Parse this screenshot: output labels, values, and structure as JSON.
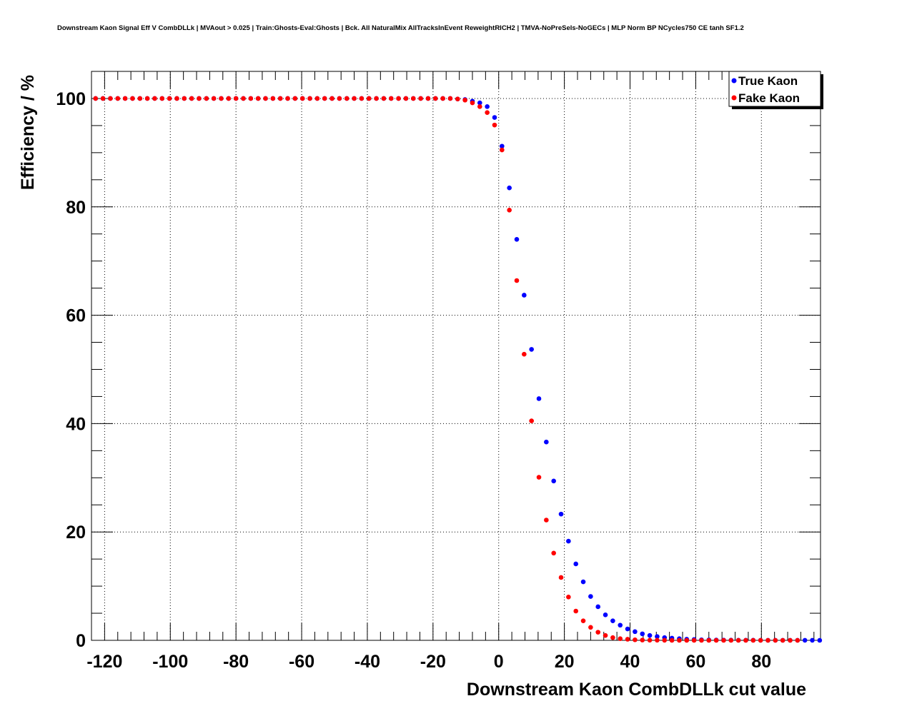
{
  "chart_data": {
    "type": "scatter",
    "title": "Downstream Kaon Signal Eff V CombDLLk | MVAout > 0.025 | Train:Ghosts-Eval:Ghosts | Bck. All NaturalMix AllTracksInEvent ReweightRICH2 | TMVA-NoPreSels-NoGECs | MLP Norm BP NCycles750 CE tanh SF1.2",
    "xlabel": "Downstream Kaon CombDLLk cut value",
    "ylabel": "Efficiency / %",
    "xlim": [
      -124,
      98
    ],
    "ylim": [
      0,
      105
    ],
    "xticks": [
      "-120",
      "-100",
      "-80",
      "-60",
      "-40",
      "-20",
      "0",
      "20",
      "40",
      "60",
      "80"
    ],
    "yticks": [
      "0",
      "20",
      "40",
      "60",
      "80",
      "100"
    ],
    "grid": true,
    "legend_position": "top-right",
    "x": [
      -122.75,
      -120.5,
      -118.25,
      -116.0,
      -113.75,
      -111.5,
      -109.25,
      -107.0,
      -104.75,
      -102.5,
      -100.25,
      -98.0,
      -95.75,
      -93.5,
      -91.25,
      -89.0,
      -86.75,
      -84.5,
      -82.25,
      -80.0,
      -77.75,
      -75.5,
      -73.25,
      -71.0,
      -68.75,
      -66.5,
      -64.25,
      -62.0,
      -59.75,
      -57.5,
      -55.25,
      -53.0,
      -50.75,
      -48.5,
      -46.25,
      -44.0,
      -41.75,
      -39.5,
      -37.25,
      -35.0,
      -32.75,
      -30.5,
      -28.25,
      -26.0,
      -23.75,
      -21.5,
      -19.25,
      -17.0,
      -14.75,
      -12.5,
      -10.25,
      -8.0,
      -5.75,
      -3.5,
      -1.25,
      1.0,
      3.25,
      5.5,
      7.75,
      10.0,
      12.25,
      14.5,
      16.75,
      19.0,
      21.25,
      23.5,
      25.75,
      28.0,
      30.25,
      32.5,
      34.75,
      37.0,
      39.25,
      41.5,
      43.75,
      46.0,
      48.25,
      50.5,
      52.75,
      55.0,
      57.25,
      59.5,
      61.75,
      64.0,
      66.25,
      68.5,
      70.75,
      73.0,
      75.25,
      77.5,
      79.75,
      82.0,
      84.25,
      86.5,
      88.75,
      91.0,
      93.25,
      95.5,
      97.75
    ],
    "series": [
      {
        "name": "True Kaon",
        "color": "#0000ff",
        "values": [
          100,
          100,
          100,
          100,
          100,
          100,
          100,
          100,
          100,
          100,
          100,
          100,
          100,
          100,
          100,
          100,
          100,
          100,
          100,
          100,
          100,
          100,
          100,
          100,
          100,
          100,
          100,
          100,
          100,
          100,
          100,
          100,
          100,
          100,
          100,
          100,
          100,
          100,
          100,
          100,
          100,
          100,
          100,
          100,
          100,
          100,
          100,
          100,
          100,
          99.9,
          99.8,
          99.5,
          99.2,
          98.5,
          96.5,
          91.2,
          83.5,
          74,
          63.7,
          53.7,
          44.6,
          36.6,
          29.4,
          23.3,
          18.3,
          14.1,
          10.8,
          8.1,
          6.2,
          4.7,
          3.6,
          2.8,
          2.1,
          1.6,
          1.2,
          0.9,
          0.7,
          0.5,
          0.4,
          0.3,
          0.2,
          0.15,
          0.1,
          0.08,
          0.06,
          0.05,
          0.04,
          0.03,
          0.02,
          0.02,
          0.01,
          0.01,
          0.01,
          0.01,
          0.01,
          0.01,
          0.01,
          0.01,
          0
        ]
      },
      {
        "name": "Fake Kaon",
        "color": "#ff0000",
        "values": [
          100,
          100,
          100,
          100,
          100,
          100,
          100,
          100,
          100,
          100,
          100,
          100,
          100,
          100,
          100,
          100,
          100,
          100,
          100,
          100,
          100,
          100,
          100,
          100,
          100,
          100,
          100,
          100,
          100,
          100,
          100,
          100,
          100,
          100,
          100,
          100,
          100,
          100,
          100,
          100,
          100,
          100,
          100,
          100,
          100,
          100,
          100,
          100,
          100,
          99.9,
          99.7,
          99.2,
          98.5,
          97.4,
          95.1,
          90.5,
          79.4,
          66.4,
          52.8,
          40.5,
          30.1,
          22.2,
          16.1,
          11.6,
          8.0,
          5.4,
          3.6,
          2.4,
          1.5,
          0.9,
          0.5,
          0.3,
          0.2,
          0.1,
          0.05,
          0.03,
          0.02,
          0.01,
          0,
          0,
          0,
          0,
          0,
          0,
          0,
          0,
          0,
          0,
          0,
          0,
          0,
          0,
          0,
          0,
          0,
          0
        ]
      }
    ]
  },
  "legend": {
    "entries": [
      "True Kaon",
      "Fake Kaon"
    ]
  }
}
